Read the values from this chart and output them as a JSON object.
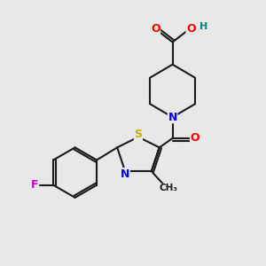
{
  "bg_color": "#e8e8e8",
  "bond_color": "#1a1a1a",
  "atom_colors": {
    "O": "#ff0000",
    "N": "#0000ff",
    "S": "#ccaa00",
    "F": "#cc00cc",
    "H": "#008888",
    "C": "#1a1a1a"
  }
}
